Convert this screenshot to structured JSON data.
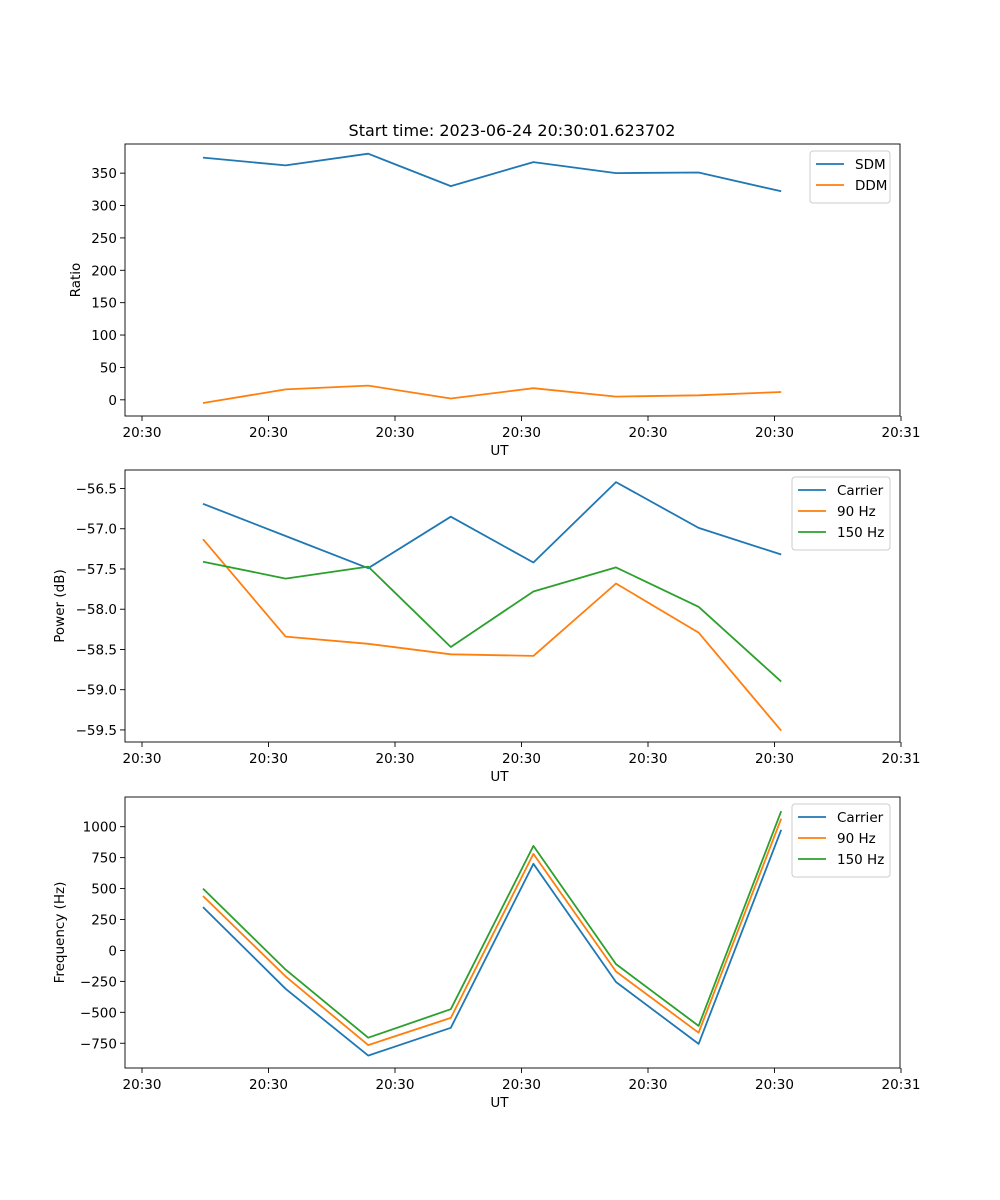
{
  "figure": {
    "title": "Start time: 2023-06-24 20:30:01.623702"
  },
  "chart_data": [
    {
      "type": "line",
      "xlabel": "UT",
      "ylabel": "Ratio",
      "x_tick_labels": [
        "20:30",
        "20:30",
        "20:30",
        "20:30",
        "20:30",
        "20:30",
        "20:30"
      ],
      "x_tick_last_label": "20:31",
      "ylim": [
        -25,
        395
      ],
      "y_ticks": [
        0,
        50,
        100,
        150,
        200,
        250,
        300,
        350
      ],
      "legend_position": "top-right",
      "x_index": [
        1,
        2,
        3,
        4,
        5,
        6,
        7,
        8
      ],
      "series": [
        {
          "name": "SDM",
          "color": "#1f77b4",
          "values": [
            374,
            362,
            380,
            330,
            367,
            350,
            351,
            322
          ]
        },
        {
          "name": "DDM",
          "color": "#ff7f0e",
          "values": [
            -5,
            16,
            22,
            2,
            18,
            5,
            7,
            12
          ]
        }
      ]
    },
    {
      "type": "line",
      "xlabel": "UT",
      "ylabel": "Power (dB)",
      "x_tick_labels": [
        "20:30",
        "20:30",
        "20:30",
        "20:30",
        "20:30",
        "20:30",
        "20:30"
      ],
      "x_tick_last_label": "20:31",
      "ylim": [
        -59.65,
        -56.27
      ],
      "y_ticks": [
        -59.5,
        -59.0,
        -58.5,
        -58.0,
        -57.5,
        -57.0,
        -56.5
      ],
      "y_tick_labels": [
        "−59.5",
        "−59.0",
        "−58.5",
        "−58.0",
        "−57.5",
        "−57.0",
        "−56.5"
      ],
      "legend_position": "top-right",
      "x_index": [
        1,
        2,
        3,
        4,
        5,
        6,
        7,
        8
      ],
      "series": [
        {
          "name": "Carrier",
          "color": "#1f77b4",
          "values": [
            -56.69,
            -57.09,
            -57.49,
            -56.85,
            -57.42,
            -56.42,
            -56.99,
            -57.32
          ]
        },
        {
          "name": "90 Hz",
          "color": "#ff7f0e",
          "values": [
            -57.13,
            -58.34,
            -58.43,
            -58.56,
            -58.58,
            -57.68,
            -58.29,
            -59.51
          ]
        },
        {
          "name": "150 Hz",
          "color": "#2ca02c",
          "values": [
            -57.41,
            -57.62,
            -57.47,
            -58.47,
            -57.78,
            -57.48,
            -57.97,
            -58.9
          ]
        }
      ]
    },
    {
      "type": "line",
      "xlabel": "UT",
      "ylabel": "Frequency (Hz)",
      "x_tick_labels": [
        "20:30",
        "20:30",
        "20:30",
        "20:30",
        "20:30",
        "20:30",
        "20:30"
      ],
      "x_tick_last_label": "20:31",
      "ylim": [
        -950,
        1240
      ],
      "y_ticks": [
        -750,
        -500,
        -250,
        0,
        250,
        500,
        750,
        1000
      ],
      "y_tick_labels": [
        "−750",
        "−500",
        "−250",
        "0",
        "250",
        "500",
        "750",
        "1000"
      ],
      "legend_position": "top-right",
      "x_index": [
        1,
        2,
        3,
        4,
        5,
        6,
        7,
        8
      ],
      "series": [
        {
          "name": "Carrier",
          "color": "#1f77b4",
          "values": [
            350,
            -310,
            -850,
            -625,
            700,
            -255,
            -755,
            975
          ]
        },
        {
          "name": "90 Hz",
          "color": "#ff7f0e",
          "values": [
            440,
            -210,
            -765,
            -545,
            780,
            -170,
            -665,
            1065
          ]
        },
        {
          "name": "150 Hz",
          "color": "#2ca02c",
          "values": [
            500,
            -155,
            -705,
            -475,
            845,
            -110,
            -610,
            1125
          ]
        }
      ]
    }
  ]
}
